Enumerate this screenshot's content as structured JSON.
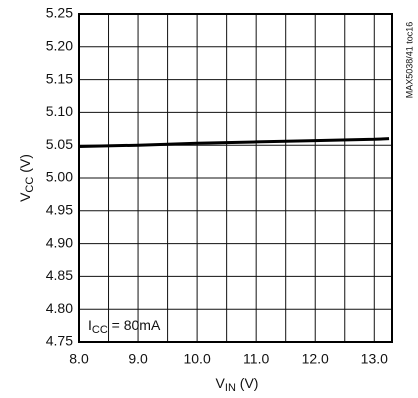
{
  "chart_data": {
    "type": "line",
    "ylabel": [
      "V",
      "CC",
      " (V)"
    ],
    "xlabel": [
      "V",
      "IN",
      " (V)"
    ],
    "annotation": [
      "I",
      "CC",
      " = 80mA"
    ],
    "side_note": "MAX5038/41 toc16",
    "x": [
      8.0,
      9.0,
      10.0,
      11.0,
      12.0,
      13.0,
      13.25
    ],
    "series": [
      {
        "name": "VCC",
        "color": "#000000",
        "values": [
          5.048,
          5.05,
          5.053,
          5.055,
          5.057,
          5.059,
          5.06
        ]
      }
    ],
    "xlim": [
      8.0,
      13.3
    ],
    "xticks": [
      {
        "value": 8,
        "label": "8.0"
      },
      {
        "value": 9,
        "label": "9.0"
      },
      {
        "value": 10,
        "label": "10.0"
      },
      {
        "value": 11,
        "label": "11.0"
      },
      {
        "value": 12,
        "label": "12.0"
      },
      {
        "value": 13,
        "label": "13.0"
      }
    ],
    "xminor": [
      8.5,
      9.5,
      10.5,
      11.5,
      12.5
    ],
    "ylim": [
      4.75,
      5.25
    ],
    "yticks": [
      4.75,
      {
        "value": 4.8,
        "label": "4.80"
      },
      4.85,
      {
        "value": 4.9,
        "label": "4.90"
      },
      4.95,
      {
        "value": 5.0,
        "label": "5.00"
      },
      5.05,
      {
        "value": 5.1,
        "label": "5.10"
      },
      5.15,
      {
        "value": 5.2,
        "label": "5.20"
      },
      5.25
    ],
    "grid": true
  }
}
